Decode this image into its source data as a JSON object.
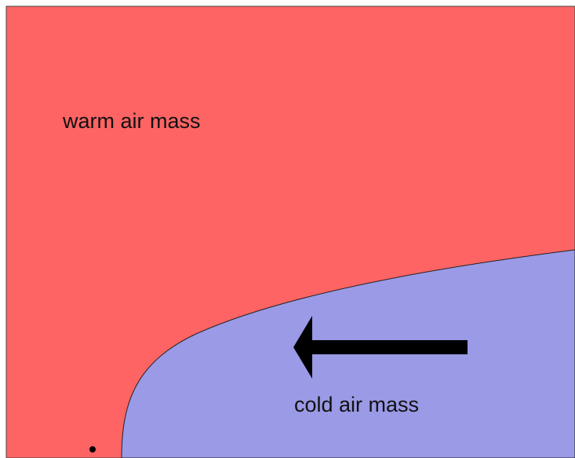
{
  "labels": {
    "warm": "warm air mass",
    "cold": "cold air mass"
  }
}
